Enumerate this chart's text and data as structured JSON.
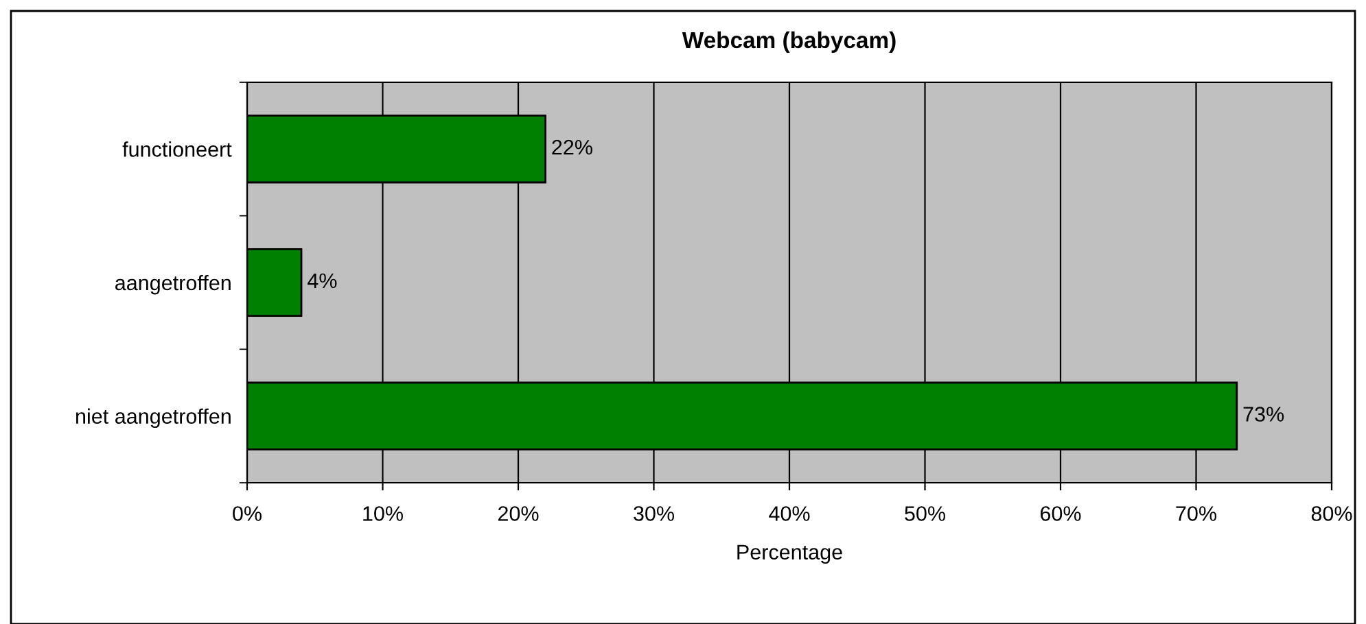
{
  "chart_data": {
    "type": "bar",
    "orientation": "horizontal",
    "title": "Webcam (babycam)",
    "xlabel": "Percentage",
    "categories": [
      "functioneert",
      "aangetroffen",
      "niet aangetroffen"
    ],
    "values": [
      22,
      4,
      73
    ],
    "color": "#008000",
    "value_labels": [
      "22%",
      "4%",
      "73%"
    ],
    "xlim": [
      0,
      80
    ],
    "xticks": [
      {
        "value": 0,
        "label": "0%"
      },
      {
        "value": 10,
        "label": "10%"
      },
      {
        "value": 20,
        "label": "20%"
      },
      {
        "value": 30,
        "label": "30%"
      },
      {
        "value": 40,
        "label": "40%"
      },
      {
        "value": 50,
        "label": "50%"
      },
      {
        "value": 60,
        "label": "60%"
      },
      {
        "value": 70,
        "label": "70%"
      },
      {
        "value": 80,
        "label": "80%"
      }
    ],
    "grid": "x",
    "legend": false
  }
}
